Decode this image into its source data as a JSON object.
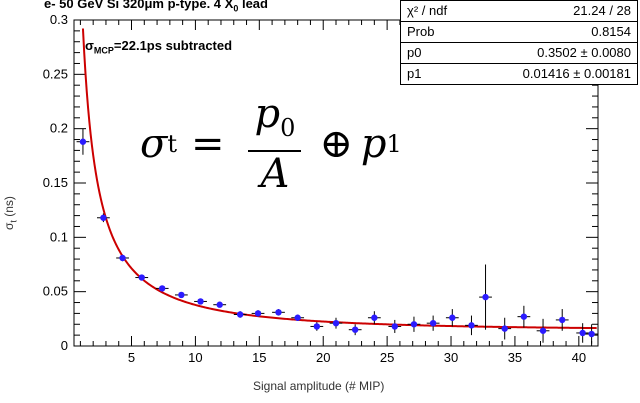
{
  "chart_data": {
    "type": "scatter",
    "title_main": "e- 50 GeV Si 320",
    "title_unit": "μm p-type. 4 X",
    "title_sub": "0",
    "title_tail": " lead",
    "annotation_main": "σ",
    "annotation_sub": "MCP",
    "annotation_tail": "=22.1ps subtracted",
    "formula": {
      "lhs": "σ",
      "lhs_sub": "t",
      "eq": "=",
      "num": "p",
      "num_sub": "0",
      "den": "A",
      "op": "⊕",
      "rhs": "p",
      "rhs_sub": "1"
    },
    "xlabel": "Signal amplitude (# MIP)",
    "ylabel_main": "σ",
    "ylabel_sub": "t",
    "ylabel_tail": " (ns)",
    "xlim": [
      0.5,
      41.5
    ],
    "ylim": [
      0,
      0.3
    ],
    "x_ticks": [
      5,
      10,
      15,
      20,
      25,
      30,
      35,
      40
    ],
    "y_ticks": [
      0,
      0.05,
      0.1,
      0.15,
      0.2,
      0.25,
      0.3
    ],
    "x_tick_labels": [
      "5",
      "10",
      "15",
      "20",
      "25",
      "30",
      "35",
      "40"
    ],
    "y_tick_labels": [
      "0",
      "0.05",
      "0.1",
      "0.15",
      "0.2",
      "0.25",
      "0.3"
    ],
    "points": [
      {
        "x": 1.2,
        "y": 0.188,
        "ex": 0.5,
        "ey": 0.012
      },
      {
        "x": 2.8,
        "y": 0.118,
        "ex": 0.5,
        "ey": 0.004
      },
      {
        "x": 4.3,
        "y": 0.081,
        "ex": 0.5,
        "ey": 0.003
      },
      {
        "x": 5.8,
        "y": 0.063,
        "ex": 0.5,
        "ey": 0.002
      },
      {
        "x": 7.4,
        "y": 0.053,
        "ex": 0.5,
        "ey": 0.002
      },
      {
        "x": 8.9,
        "y": 0.047,
        "ex": 0.5,
        "ey": 0.002
      },
      {
        "x": 10.4,
        "y": 0.041,
        "ex": 0.5,
        "ey": 0.002
      },
      {
        "x": 11.9,
        "y": 0.038,
        "ex": 0.5,
        "ey": 0.002
      },
      {
        "x": 13.5,
        "y": 0.029,
        "ex": 0.5,
        "ey": 0.003
      },
      {
        "x": 14.9,
        "y": 0.03,
        "ex": 0.5,
        "ey": 0.003
      },
      {
        "x": 16.5,
        "y": 0.031,
        "ex": 0.5,
        "ey": 0.003
      },
      {
        "x": 18.0,
        "y": 0.026,
        "ex": 0.5,
        "ey": 0.003
      },
      {
        "x": 19.5,
        "y": 0.018,
        "ex": 0.5,
        "ey": 0.004
      },
      {
        "x": 21.0,
        "y": 0.021,
        "ex": 0.5,
        "ey": 0.005
      },
      {
        "x": 22.5,
        "y": 0.015,
        "ex": 0.5,
        "ey": 0.005
      },
      {
        "x": 24.0,
        "y": 0.026,
        "ex": 0.5,
        "ey": 0.006
      },
      {
        "x": 25.6,
        "y": 0.018,
        "ex": 0.5,
        "ey": 0.006
      },
      {
        "x": 27.1,
        "y": 0.02,
        "ex": 0.5,
        "ey": 0.007
      },
      {
        "x": 28.6,
        "y": 0.021,
        "ex": 0.5,
        "ey": 0.007
      },
      {
        "x": 30.1,
        "y": 0.026,
        "ex": 0.5,
        "ey": 0.008
      },
      {
        "x": 31.6,
        "y": 0.019,
        "ex": 0.5,
        "ey": 0.009
      },
      {
        "x": 32.7,
        "y": 0.045,
        "ex": 0.5,
        "ey": 0.03
      },
      {
        "x": 34.2,
        "y": 0.016,
        "ex": 0.5,
        "ey": 0.01
      },
      {
        "x": 35.7,
        "y": 0.027,
        "ex": 0.5,
        "ey": 0.01
      },
      {
        "x": 37.2,
        "y": 0.014,
        "ex": 0.5,
        "ey": 0.011
      },
      {
        "x": 38.7,
        "y": 0.024,
        "ex": 0.5,
        "ey": 0.01
      },
      {
        "x": 40.3,
        "y": 0.012,
        "ex": 0.5,
        "ey": 0.009
      },
      {
        "x": 41.0,
        "y": 0.011,
        "ex": 0.5,
        "ey": 0.009
      }
    ],
    "fit": {
      "p0": 0.3502,
      "p1": 0.01416
    },
    "stats": [
      {
        "label": "χ² / ndf",
        "value": "21.24 / 28"
      },
      {
        "label": "Prob",
        "value": "0.8154"
      },
      {
        "label": "p0",
        "value": "0.3502 ± 0.0080"
      },
      {
        "label": "p1",
        "value": "0.01416 ± 0.00181"
      }
    ],
    "colors": {
      "points": "#2b1bff",
      "fit": "#cc0000",
      "axis": "#000000"
    }
  }
}
